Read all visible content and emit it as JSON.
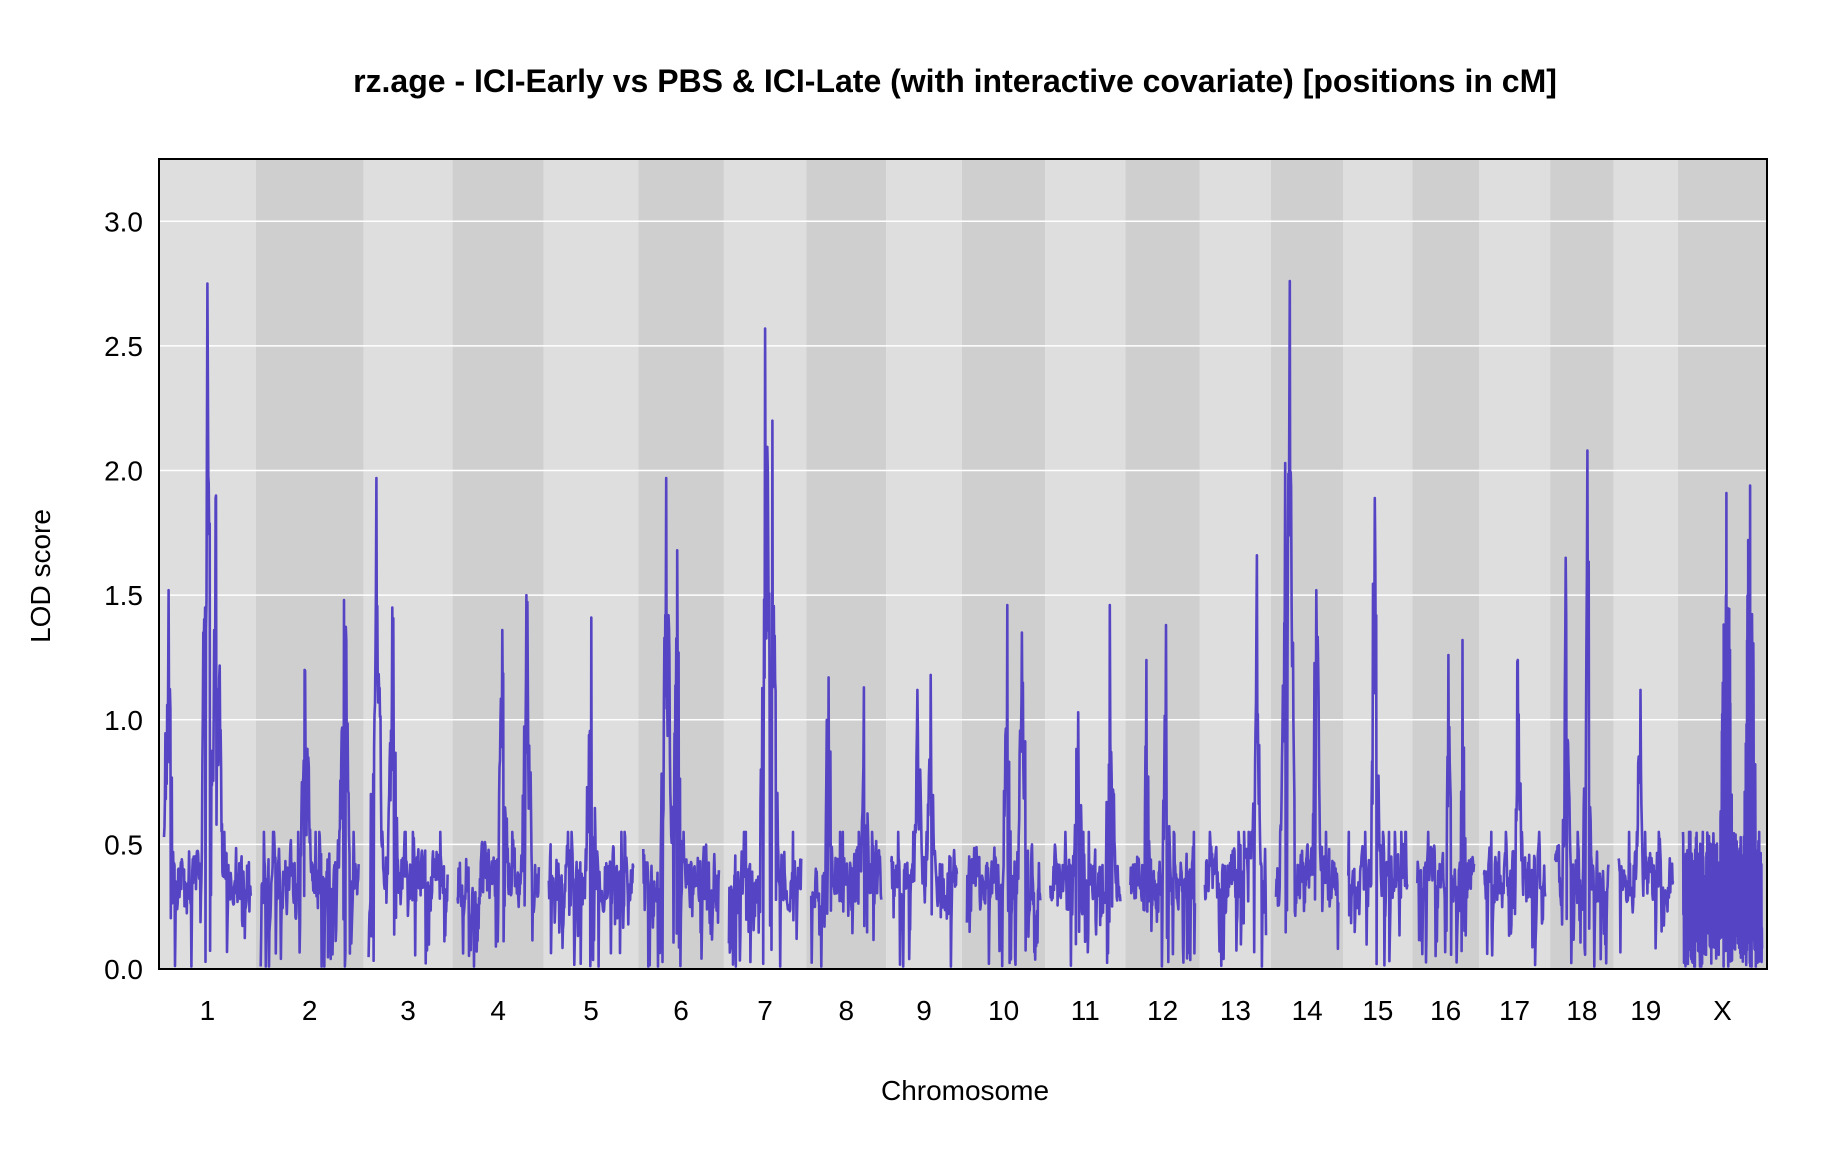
{
  "chart_data": {
    "type": "line",
    "title": "rz.age - ICI-Early vs PBS & ICI-Late (with interactive covariate) [positions in cM]",
    "xlabel": "Chromosome",
    "ylabel": "LOD score",
    "ylim": [
      0,
      3.25
    ],
    "yticks": [
      "0.0",
      "0.5",
      "1.0",
      "1.5",
      "2.0",
      "2.5",
      "3.0"
    ],
    "grid": true,
    "line_color": "#5544c4",
    "band_colors": [
      "#dedede",
      "#cfcfcf"
    ],
    "chromosomes": [
      {
        "label": "1",
        "peaks": [
          {
            "pos": 0.05,
            "lod": 1.52
          },
          {
            "pos": 0.5,
            "lod": 2.75
          },
          {
            "pos": 0.6,
            "lod": 1.9
          }
        ]
      },
      {
        "label": "2",
        "peaks": [
          {
            "pos": 0.45,
            "lod": 1.2
          },
          {
            "pos": 0.85,
            "lod": 1.48
          }
        ]
      },
      {
        "label": "3",
        "peaks": [
          {
            "pos": 0.1,
            "lod": 1.97
          },
          {
            "pos": 0.3,
            "lod": 1.45
          }
        ]
      },
      {
        "label": "4",
        "peaks": [
          {
            "pos": 0.55,
            "lod": 1.36
          },
          {
            "pos": 0.85,
            "lod": 1.5
          }
        ]
      },
      {
        "label": "5",
        "peaks": [
          {
            "pos": 0.5,
            "lod": 1.41
          }
        ]
      },
      {
        "label": "6",
        "peaks": [
          {
            "pos": 0.3,
            "lod": 1.97
          },
          {
            "pos": 0.45,
            "lod": 1.68
          }
        ]
      },
      {
        "label": "7",
        "peaks": [
          {
            "pos": 0.5,
            "lod": 2.57
          },
          {
            "pos": 0.6,
            "lod": 2.2
          }
        ]
      },
      {
        "label": "8",
        "peaks": [
          {
            "pos": 0.25,
            "lod": 1.17
          },
          {
            "pos": 0.75,
            "lod": 1.13
          }
        ]
      },
      {
        "label": "9",
        "peaks": [
          {
            "pos": 0.4,
            "lod": 1.12
          },
          {
            "pos": 0.6,
            "lod": 1.18
          }
        ]
      },
      {
        "label": "10",
        "peaks": [
          {
            "pos": 0.55,
            "lod": 1.46
          },
          {
            "pos": 0.75,
            "lod": 1.35
          }
        ]
      },
      {
        "label": "11",
        "peaks": [
          {
            "pos": 0.4,
            "lod": 1.03
          },
          {
            "pos": 0.85,
            "lod": 1.46
          }
        ]
      },
      {
        "label": "12",
        "peaks": [
          {
            "pos": 0.25,
            "lod": 1.24
          },
          {
            "pos": 0.55,
            "lod": 1.38
          }
        ]
      },
      {
        "label": "13",
        "peaks": [
          {
            "pos": 0.85,
            "lod": 1.66
          }
        ]
      },
      {
        "label": "14",
        "peaks": [
          {
            "pos": 0.15,
            "lod": 2.03
          },
          {
            "pos": 0.22,
            "lod": 2.76
          },
          {
            "pos": 0.65,
            "lod": 1.52
          }
        ]
      },
      {
        "label": "15",
        "peaks": [
          {
            "pos": 0.45,
            "lod": 1.89
          }
        ]
      },
      {
        "label": "16",
        "peaks": [
          {
            "pos": 0.55,
            "lod": 1.26
          },
          {
            "pos": 0.8,
            "lod": 1.32
          }
        ]
      },
      {
        "label": "17",
        "peaks": [
          {
            "pos": 0.55,
            "lod": 1.24
          }
        ]
      },
      {
        "label": "18",
        "peaks": [
          {
            "pos": 0.2,
            "lod": 1.65
          },
          {
            "pos": 0.6,
            "lod": 2.08
          }
        ]
      },
      {
        "label": "19",
        "peaks": [
          {
            "pos": 0.4,
            "lod": 1.12
          }
        ]
      },
      {
        "label": "X",
        "peaks": [
          {
            "pos": 0.55,
            "lod": 1.91
          },
          {
            "pos": 0.85,
            "lod": 1.94
          }
        ]
      }
    ]
  }
}
